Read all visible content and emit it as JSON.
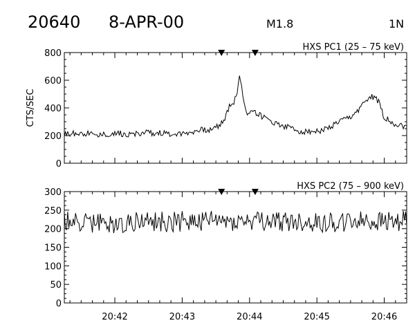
{
  "header": {
    "event_number": "20640",
    "date": "8-APR-00",
    "flare_class": "M1.8",
    "location": "1N"
  },
  "chart_data": [
    {
      "type": "line",
      "title": "HXS PC1 (25 – 75 keV)",
      "ylabel": "CTS/SEC",
      "xlabel": "",
      "xlim": [
        "20:41:15",
        "20:46:20"
      ],
      "ylim": [
        0,
        800
      ],
      "yticks": [
        0,
        200,
        400,
        600,
        800
      ],
      "xticks": [
        "20:42",
        "20:43",
        "20:44",
        "20:45",
        "20:46"
      ],
      "markers": [
        "20:43:35",
        "20:44:05"
      ],
      "series": [
        {
          "points": [
            [
              "20:41:15",
              210
            ],
            [
              "20:41:30",
              220
            ],
            [
              "20:41:45",
              205
            ],
            [
              "20:42:00",
              215
            ],
            [
              "20:42:15",
              210
            ],
            [
              "20:42:30",
              220
            ],
            [
              "20:42:45",
              215
            ],
            [
              "20:43:00",
              215
            ],
            [
              "20:43:15",
              240
            ],
            [
              "20:43:25",
              240
            ],
            [
              "20:43:32",
              270
            ],
            [
              "20:43:38",
              320
            ],
            [
              "20:43:42",
              420
            ],
            [
              "20:43:46",
              440
            ],
            [
              "20:43:49",
              520
            ],
            [
              "20:43:51",
              620
            ],
            [
              "20:43:53",
              560
            ],
            [
              "20:43:55",
              430
            ],
            [
              "20:43:58",
              360
            ],
            [
              "20:44:02",
              390
            ],
            [
              "20:44:08",
              350
            ],
            [
              "20:44:15",
              320
            ],
            [
              "20:44:30",
              270
            ],
            [
              "20:44:45",
              230
            ],
            [
              "20:45:00",
              230
            ],
            [
              "20:45:10",
              250
            ],
            [
              "20:45:20",
              300
            ],
            [
              "20:45:30",
              330
            ],
            [
              "20:45:40",
              410
            ],
            [
              "20:45:45",
              470
            ],
            [
              "20:45:50",
              480
            ],
            [
              "20:45:55",
              450
            ],
            [
              "20:46:00",
              330
            ],
            [
              "20:46:10",
              280
            ],
            [
              "20:46:20",
              260
            ]
          ],
          "noise": 22
        }
      ]
    },
    {
      "type": "line",
      "title": "HXS PC2 (75 – 900 keV)",
      "ylabel": "",
      "xlabel": "",
      "xlim": [
        "20:41:15",
        "20:46:20"
      ],
      "ylim": [
        0,
        300
      ],
      "yticks": [
        0,
        50,
        100,
        150,
        200,
        250,
        300
      ],
      "xticks": [
        "20:42",
        "20:43",
        "20:44",
        "20:45",
        "20:46"
      ],
      "markers": [
        "20:43:35",
        "20:44:05"
      ],
      "series": [
        {
          "points": [
            [
              "20:41:15",
              220
            ],
            [
              "20:42:00",
              215
            ],
            [
              "20:43:00",
              220
            ],
            [
              "20:44:00",
              222
            ],
            [
              "20:45:00",
              218
            ],
            [
              "20:46:00",
              220
            ],
            [
              "20:46:20",
              220
            ]
          ],
          "noise": 28
        }
      ]
    }
  ]
}
